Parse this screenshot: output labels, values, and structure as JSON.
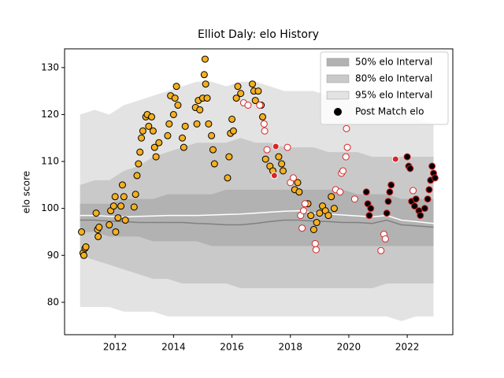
{
  "chart_data": {
    "type": "interval_scatter",
    "title": "Elliot Daly: elo History",
    "ylabel": "elo score",
    "xlim": [
      2010.27,
      2023.56
    ],
    "ylim": [
      73.1,
      134.0
    ],
    "xticks": [
      2012,
      2014,
      2016,
      2018,
      2020,
      2022
    ],
    "yticks": [
      80,
      90,
      100,
      110,
      120,
      130
    ],
    "grid": false,
    "legend": "upper right",
    "x": [
      2010.8,
      2011.3,
      2011.8,
      2012.3,
      2012.8,
      2013.3,
      2013.8,
      2014.3,
      2014.8,
      2015.3,
      2015.8,
      2016.3,
      2016.8,
      2017.3,
      2017.8,
      2018.3,
      2018.8,
      2019.3,
      2019.8,
      2020.3,
      2020.8,
      2021.3,
      2021.8,
      2022.3,
      2022.9
    ],
    "intervals": [
      {
        "name": "95% elo Interval",
        "color": "#e3e3e3",
        "upper": [
          120,
          121,
          120,
          122,
          123,
          124,
          125,
          126,
          127,
          127,
          126,
          127,
          127,
          126,
          125,
          125,
          125,
          124,
          123,
          123,
          121,
          121,
          120,
          119,
          118
        ],
        "lower": [
          79,
          79,
          79,
          78,
          78,
          78,
          77,
          77,
          77,
          77,
          77,
          77,
          77,
          77,
          77,
          77,
          77,
          77,
          77,
          77,
          77,
          77,
          76,
          77,
          77
        ]
      },
      {
        "name": "80% elo Interval",
        "color": "#c9c9c9",
        "upper": [
          105,
          106,
          106,
          108,
          109,
          111,
          112,
          113,
          114,
          114,
          114,
          115,
          114,
          114,
          113,
          113,
          113,
          112,
          112,
          112,
          111,
          111,
          111,
          111,
          111
        ],
        "lower": [
          90,
          89,
          88,
          87,
          86,
          85,
          85,
          84,
          84,
          84,
          84,
          83,
          83,
          83,
          83,
          83,
          83,
          83,
          83,
          83,
          83,
          84,
          84,
          84,
          84
        ]
      },
      {
        "name": "50% elo Interval",
        "color": "#b2b2b2",
        "upper": [
          101,
          101,
          101,
          102,
          102,
          102,
          103,
          103,
          103,
          103,
          104,
          104,
          104,
          104,
          104,
          104,
          104,
          104,
          104,
          103,
          103,
          103,
          102,
          102,
          102
        ],
        "lower": [
          95,
          95,
          94,
          94,
          94,
          93,
          93,
          93,
          93,
          92,
          92,
          92,
          92,
          92,
          92,
          92,
          92,
          92,
          92,
          92,
          92,
          92,
          92,
          92,
          92
        ]
      }
    ],
    "lines": [
      {
        "color": "#ffffff",
        "values": [
          98.5,
          98.5,
          98.3,
          98.2,
          98.3,
          98.4,
          98.5,
          98.5,
          98.5,
          98.6,
          98.7,
          98.8,
          99,
          99.2,
          99.4,
          99.5,
          99,
          98.8,
          98.6,
          98.4,
          98.2,
          98.5,
          97.5,
          97.2,
          96.8
        ]
      },
      {
        "color": "#808080",
        "values": [
          97.5,
          97.5,
          97.3,
          97.2,
          97,
          97,
          97,
          97,
          96.8,
          96.7,
          96.5,
          96.5,
          96.8,
          97.2,
          97.5,
          97.5,
          97.3,
          97.2,
          97,
          97,
          96.8,
          97.5,
          96.5,
          96.3,
          96
        ]
      }
    ],
    "points": {
      "name": "Post Match elo",
      "color": "#000000",
      "groups": [
        {
          "color": "#f5b01f",
          "edgecolor": "#000000",
          "x": [
            2010.85,
            2010.9,
            2010.93,
            2010.97,
            2011.0,
            2011.35,
            2011.4,
            2011.42,
            2011.45,
            2011.8,
            2011.85,
            2011.95,
            2012.0,
            2012.02,
            2012.1,
            2012.2,
            2012.25,
            2012.3,
            2012.35,
            2012.65,
            2012.7,
            2012.75,
            2012.8,
            2012.85,
            2012.9,
            2012.95,
            2013.05,
            2013.1,
            2013.15,
            2013.25,
            2013.3,
            2013.35,
            2013.4,
            2013.5,
            2013.8,
            2013.85,
            2013.9,
            2014.0,
            2014.05,
            2014.1,
            2014.15,
            2014.3,
            2014.35,
            2014.4,
            2014.75,
            2014.8,
            2014.85,
            2014.9,
            2015.0,
            2015.05,
            2015.08,
            2015.1,
            2015.15,
            2015.2,
            2015.3,
            2015.35,
            2015.4,
            2015.85,
            2015.9,
            2015.95,
            2016.0,
            2016.05,
            2016.15,
            2016.2,
            2016.3,
            2016.7,
            2016.75,
            2016.8,
            2016.9,
            2017.0,
            2017.05,
            2017.15,
            2017.3,
            2017.4,
            2017.6,
            2017.7,
            2017.75,
            2018.15,
            2018.25,
            2018.3,
            2018.6,
            2018.7,
            2018.8,
            2018.9,
            2019.0,
            2019.1,
            2019.2,
            2019.3,
            2019.4,
            2019.5
          ],
          "values": [
            95,
            90.5,
            90,
            91.5,
            91.8,
            99,
            95.5,
            94,
            96,
            96.5,
            99.5,
            100.5,
            102.5,
            95,
            98,
            100.5,
            105,
            102.5,
            97.5,
            100.3,
            103,
            107,
            109.5,
            112,
            115,
            116.5,
            119.5,
            120,
            117.5,
            119.5,
            116.5,
            113,
            111,
            114,
            115.5,
            118,
            124,
            120,
            123.5,
            126,
            122,
            115,
            113,
            117.5,
            121.5,
            118,
            123,
            121,
            123.5,
            128.5,
            131.8,
            126.5,
            123.5,
            118,
            115.5,
            112.5,
            109.5,
            106.5,
            111,
            116,
            119,
            116.5,
            123.5,
            126,
            124.5,
            126.5,
            125,
            123,
            125,
            122,
            119.5,
            110.5,
            109,
            108,
            111,
            109.5,
            108,
            104,
            105.5,
            103.5,
            101,
            98.5,
            95.5,
            97,
            99,
            100.5,
            99.5,
            98.5,
            102.5,
            100
          ]
        },
        {
          "color": "#ffffff",
          "edgecolor": "#d62728",
          "x": [
            2016.4,
            2016.55,
            2016.95,
            2017.1,
            2017.12,
            2017.2,
            2017.9,
            2018.0,
            2018.1,
            2018.35,
            2018.4,
            2018.45,
            2018.5,
            2018.85,
            2018.88,
            2019.55,
            2019.7,
            2019.75,
            2019.8,
            2019.9,
            2019.95,
            2019.92,
            2020.2,
            2021.1,
            2021.2,
            2021.25,
            2022.2
          ],
          "values": [
            122.5,
            122,
            122,
            118,
            116.5,
            112.5,
            113,
            105.5,
            106.5,
            98.5,
            95.8,
            99.5,
            101,
            92.5,
            91.2,
            104,
            103.5,
            107.5,
            108,
            111,
            113,
            117,
            102,
            91,
            94.5,
            93.5,
            103.8
          ]
        },
        {
          "color": "#d62728",
          "edgecolor": "#ffffff",
          "x": [
            2017.45,
            2017.5,
            2021.6
          ],
          "values": [
            107,
            113.2,
            110.5
          ]
        },
        {
          "color": "#000000",
          "edgecolor": "#d62728",
          "x": [
            2020.6,
            2020.65,
            2020.7,
            2020.75,
            2021.3,
            2021.35,
            2021.4,
            2021.45,
            2022.0,
            2022.05,
            2022.1,
            2022.15,
            2022.25,
            2022.3,
            2022.4,
            2022.45,
            2022.6,
            2022.7,
            2022.75,
            2022.8,
            2022.85,
            2022.9,
            2022.95
          ],
          "values": [
            103.5,
            101,
            98.5,
            100,
            99,
            101.5,
            103.5,
            105,
            111,
            109,
            108.5,
            101.5,
            100.5,
            102,
            99.5,
            98.5,
            100,
            102,
            104,
            106,
            109,
            107.5,
            106.5
          ]
        }
      ]
    }
  }
}
